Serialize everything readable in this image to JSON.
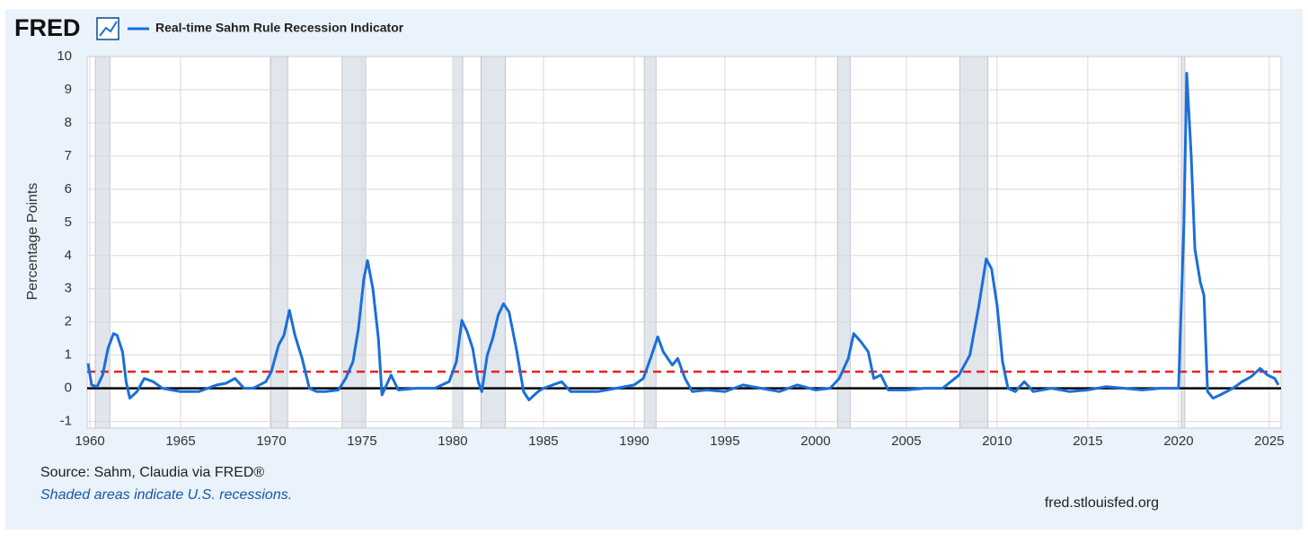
{
  "chart_data": {
    "type": "line",
    "logo": "FRED",
    "y_label": "Percentage Points",
    "source": "Source: Sahm, Claudia via FRED®",
    "note": "Shaded areas indicate U.S. recessions.",
    "site": "fred.stlouisfed.org",
    "xlim": [
      1959.85,
      2025.65
    ],
    "xticks": [
      1960,
      1965,
      1970,
      1975,
      1980,
      1985,
      1990,
      1995,
      2000,
      2005,
      2010,
      2015,
      2020,
      2025
    ],
    "ylim": [
      -1.2,
      10
    ],
    "yticks": [
      -1,
      0,
      1,
      2,
      3,
      4,
      5,
      6,
      7,
      8,
      9,
      10
    ],
    "grid": true,
    "recessions": [
      [
        1960.3,
        1961.1
      ],
      [
        1969.95,
        1970.9
      ],
      [
        1973.9,
        1975.2
      ],
      [
        1980.0,
        1980.55
      ],
      [
        1981.55,
        1982.9
      ],
      [
        1990.55,
        1991.2
      ],
      [
        2001.2,
        2001.9
      ],
      [
        2007.95,
        2009.5
      ],
      [
        2020.15,
        2020.35
      ]
    ],
    "recession_color": "#e1e5ec",
    "reference_lines": [
      {
        "value": 0.5,
        "color": "#e8221e",
        "dash": true
      },
      {
        "value": 0,
        "color": "#000000",
        "dash": false
      }
    ],
    "x": [
      1959.9,
      1960.1,
      1960.4,
      1960.7,
      1961.0,
      1961.3,
      1961.5,
      1961.8,
      1962.0,
      1962.2,
      1962.6,
      1963.0,
      1963.5,
      1964.0,
      1964.5,
      1965,
      1966,
      1967,
      1967.5,
      1968,
      1968.5,
      1969,
      1969.7,
      1970.0,
      1970.4,
      1970.7,
      1971.0,
      1971.3,
      1971.7,
      1972.1,
      1972.5,
      1973,
      1973.7,
      1974.1,
      1974.5,
      1974.8,
      1975.1,
      1975.3,
      1975.6,
      1975.9,
      1976.1,
      1976.6,
      1977,
      1978,
      1979,
      1979.8,
      1980.2,
      1980.5,
      1980.8,
      1981.1,
      1981.4,
      1981.6,
      1981.9,
      1982.2,
      1982.5,
      1982.8,
      1983.1,
      1983.5,
      1983.9,
      1984.2,
      1984.7,
      1985,
      1986,
      1986.5,
      1987,
      1988,
      1989,
      1990,
      1990.5,
      1990.9,
      1991.3,
      1991.6,
      1992.1,
      1992.4,
      1992.8,
      1993.2,
      1994,
      1995,
      1996,
      1997,
      1998,
      1999,
      2000,
      2000.8,
      2001.3,
      2001.8,
      2002.1,
      2002.5,
      2002.9,
      2003.2,
      2003.6,
      2004,
      2005,
      2006,
      2007,
      2007.9,
      2008.5,
      2009.0,
      2009.4,
      2009.7,
      2010.0,
      2010.3,
      2010.6,
      2011,
      2011.5,
      2012,
      2013,
      2014,
      2015,
      2016,
      2017,
      2018,
      2019,
      2020.0,
      2020.3,
      2020.45,
      2020.7,
      2020.9,
      2021.2,
      2021.4,
      2021.6,
      2021.9,
      2022.3,
      2023,
      2023.5,
      2024.0,
      2024.5,
      2024.9,
      2025.3,
      2025.5
    ],
    "series": [
      {
        "name": "Real-time Sahm Rule Recession Indicator",
        "color": "#1a6fd9",
        "values": [
          0.75,
          0.1,
          0.05,
          0.4,
          1.2,
          1.65,
          1.6,
          1.1,
          0.2,
          -0.3,
          -0.1,
          0.3,
          0.2,
          0.0,
          -0.05,
          -0.1,
          -0.1,
          0.1,
          0.15,
          0.3,
          0.0,
          0.0,
          0.2,
          0.5,
          1.3,
          1.6,
          2.35,
          1.6,
          0.9,
          0.0,
          -0.1,
          -0.1,
          -0.05,
          0.3,
          0.8,
          1.8,
          3.3,
          3.85,
          3.0,
          1.5,
          -0.2,
          0.4,
          -0.05,
          0.0,
          0.0,
          0.2,
          0.8,
          2.05,
          1.7,
          1.2,
          0.2,
          -0.1,
          1.0,
          1.5,
          2.2,
          2.55,
          2.3,
          1.2,
          -0.1,
          -0.35,
          -0.1,
          0.0,
          0.2,
          -0.1,
          -0.1,
          -0.1,
          0.0,
          0.1,
          0.3,
          0.9,
          1.55,
          1.1,
          0.7,
          0.9,
          0.3,
          -0.1,
          -0.05,
          -0.1,
          0.1,
          0.0,
          -0.1,
          0.1,
          -0.05,
          0.0,
          0.3,
          0.9,
          1.65,
          1.4,
          1.1,
          0.3,
          0.4,
          -0.05,
          -0.05,
          0.0,
          0.0,
          0.4,
          1.0,
          2.5,
          3.9,
          3.6,
          2.5,
          0.8,
          0.0,
          -0.1,
          0.2,
          -0.1,
          0.0,
          -0.1,
          -0.05,
          0.05,
          0.0,
          -0.05,
          0.0,
          0.0,
          5.0,
          9.5,
          7.0,
          4.2,
          3.2,
          2.8,
          -0.1,
          -0.3,
          -0.2,
          0.0,
          0.2,
          0.35,
          0.6,
          0.4,
          0.3,
          0.1
        ]
      }
    ]
  }
}
